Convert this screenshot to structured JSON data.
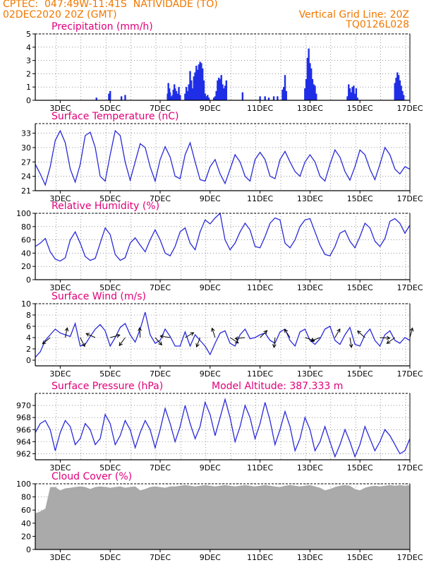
{
  "header": {
    "line1": "CPTEC:  047:49W-11:41S  NATIVIDADE (TO)",
    "line2": "02DEC2020 20Z (GMT)",
    "right1": "Vertical Grid Line: 20Z",
    "right2": "TQ0126L028"
  },
  "model_altitude": "Model Altitude: 387.333 m",
  "x_axis": {
    "labels": [
      "3DEC",
      "5DEC",
      "7DEC",
      "9DEC",
      "11DEC",
      "13DEC",
      "15DEC",
      "17DEC"
    ],
    "range": [
      2.0,
      17.0
    ],
    "label_days": [
      3,
      5,
      7,
      9,
      11,
      13,
      15,
      17
    ]
  },
  "colors": {
    "line": "#2a2ad8",
    "bar": "#1f2ee6",
    "cloud": "#aaaaaa",
    "title": "#e0007a",
    "header": "#f07800"
  },
  "chart_data": [
    {
      "type": "bar",
      "title": "Precipitation (mm/h)",
      "ylim": [
        0,
        5
      ],
      "yticks": [
        "0",
        "1",
        "2",
        "3",
        "4",
        "5"
      ],
      "x": [
        4.45,
        4.95,
        5.0,
        5.45,
        5.6,
        7.3,
        7.33,
        7.37,
        7.4,
        7.45,
        7.5,
        7.53,
        7.57,
        7.6,
        7.65,
        7.7,
        7.75,
        7.8,
        8.0,
        8.05,
        8.1,
        8.15,
        8.2,
        8.25,
        8.3,
        8.35,
        8.4,
        8.45,
        8.5,
        8.55,
        8.6,
        8.65,
        8.7,
        8.75,
        8.8,
        8.85,
        8.9,
        8.95,
        9.15,
        9.2,
        9.25,
        9.3,
        9.35,
        9.4,
        9.45,
        9.5,
        9.55,
        9.6,
        9.65,
        10.3,
        11.0,
        11.2,
        11.35,
        11.55,
        11.7,
        11.9,
        11.95,
        12.0,
        12.05,
        12.8,
        12.85,
        12.9,
        12.95,
        13.0,
        13.05,
        13.1,
        13.15,
        13.2,
        13.25,
        14.5,
        14.55,
        14.6,
        14.65,
        14.7,
        14.75,
        14.8,
        14.85,
        14.9,
        16.4,
        16.45,
        16.5,
        16.55,
        16.6,
        16.65,
        16.7,
        16.75
      ],
      "values": [
        0.2,
        0.5,
        0.7,
        0.3,
        0.4,
        0.5,
        1.3,
        0.9,
        0.6,
        0.3,
        0.4,
        0.8,
        1.2,
        0.9,
        0.7,
        0.5,
        1.0,
        0.4,
        0.5,
        1.0,
        0.7,
        1.2,
        2.2,
        1.5,
        0.9,
        1.8,
        2.1,
        2.6,
        2.3,
        2.7,
        2.9,
        2.8,
        2.4,
        1.5,
        0.5,
        0.3,
        0.4,
        0.2,
        0.2,
        0.3,
        0.7,
        1.5,
        1.7,
        1.6,
        1.9,
        1.2,
        0.9,
        1.1,
        1.5,
        0.6,
        0.3,
        0.3,
        0.2,
        0.3,
        0.3,
        0.8,
        1.0,
        1.9,
        0.7,
        0.9,
        1.6,
        3.2,
        3.9,
        2.8,
        2.4,
        1.6,
        1.2,
        1.1,
        0.5,
        0.3,
        1.2,
        0.9,
        0.6,
        1.0,
        1.1,
        0.5,
        0.9,
        0.2,
        1.3,
        1.7,
        2.1,
        1.9,
        1.5,
        1.1,
        0.7,
        0.4
      ]
    },
    {
      "type": "line",
      "title": "Surface Temperature (nC)",
      "ylim": [
        21,
        35
      ],
      "yticks": [
        "21",
        "24",
        "27",
        "30",
        "33"
      ],
      "x": [
        2.0,
        2.2,
        2.4,
        2.6,
        2.8,
        3.0,
        3.2,
        3.4,
        3.6,
        3.8,
        4.0,
        4.2,
        4.4,
        4.6,
        4.8,
        5.0,
        5.2,
        5.4,
        5.6,
        5.8,
        6.0,
        6.2,
        6.4,
        6.6,
        6.8,
        7.0,
        7.2,
        7.4,
        7.6,
        7.8,
        8.0,
        8.2,
        8.4,
        8.6,
        8.8,
        9.0,
        9.2,
        9.4,
        9.6,
        9.8,
        10.0,
        10.2,
        10.4,
        10.6,
        10.8,
        11.0,
        11.2,
        11.4,
        11.6,
        11.8,
        12.0,
        12.2,
        12.4,
        12.6,
        12.8,
        13.0,
        13.2,
        13.4,
        13.6,
        13.8,
        14.0,
        14.2,
        14.4,
        14.6,
        14.8,
        15.0,
        15.2,
        15.4,
        15.6,
        15.8,
        16.0,
        16.2,
        16.4,
        16.6,
        16.8,
        17.0
      ],
      "values": [
        26.5,
        24.5,
        22.2,
        26.0,
        31.5,
        33.5,
        31.0,
        25.5,
        22.8,
        26.5,
        32.5,
        33.2,
        30.0,
        24.0,
        23.0,
        28.5,
        33.5,
        32.5,
        27.0,
        23.2,
        27.0,
        30.8,
        30.0,
        26.0,
        23.0,
        27.5,
        30.2,
        28.0,
        24.0,
        23.5,
        28.5,
        31.0,
        27.0,
        23.3,
        23.0,
        26.0,
        27.5,
        24.5,
        22.5,
        25.5,
        28.5,
        27.0,
        24.0,
        23.0,
        27.5,
        29.0,
        27.5,
        24.0,
        23.5,
        27.5,
        29.2,
        27.0,
        25.0,
        24.0,
        27.0,
        28.5,
        27.0,
        24.0,
        23.0,
        26.5,
        29.5,
        28.0,
        25.0,
        23.2,
        26.0,
        29.5,
        28.5,
        25.5,
        23.3,
        26.5,
        30.0,
        28.5,
        25.5,
        24.5,
        26.0,
        25.5
      ]
    },
    {
      "type": "line",
      "title": "Relative Humidity (%)",
      "ylim": [
        0,
        100
      ],
      "yticks": [
        "0",
        "20",
        "40",
        "60",
        "80",
        "100"
      ],
      "x": [
        2.0,
        2.2,
        2.4,
        2.6,
        2.8,
        3.0,
        3.2,
        3.4,
        3.6,
        3.8,
        4.0,
        4.2,
        4.4,
        4.6,
        4.8,
        5.0,
        5.2,
        5.4,
        5.6,
        5.8,
        6.0,
        6.2,
        6.4,
        6.6,
        6.8,
        7.0,
        7.2,
        7.4,
        7.6,
        7.8,
        8.0,
        8.2,
        8.4,
        8.6,
        8.8,
        9.0,
        9.2,
        9.4,
        9.6,
        9.8,
        10.0,
        10.2,
        10.4,
        10.6,
        10.8,
        11.0,
        11.2,
        11.4,
        11.6,
        11.8,
        12.0,
        12.2,
        12.4,
        12.6,
        12.8,
        13.0,
        13.2,
        13.4,
        13.6,
        13.8,
        14.0,
        14.2,
        14.4,
        14.6,
        14.8,
        15.0,
        15.2,
        15.4,
        15.6,
        15.8,
        16.0,
        16.2,
        16.4,
        16.6,
        16.8,
        17.0
      ],
      "values": [
        50,
        55,
        62,
        42,
        31,
        28,
        33,
        60,
        72,
        55,
        35,
        29,
        32,
        55,
        78,
        68,
        38,
        29,
        33,
        55,
        63,
        52,
        42,
        60,
        75,
        60,
        40,
        36,
        50,
        72,
        78,
        55,
        45,
        72,
        90,
        84,
        93,
        100,
        60,
        45,
        55,
        72,
        85,
        75,
        50,
        48,
        65,
        85,
        93,
        90,
        55,
        48,
        60,
        80,
        90,
        92,
        72,
        52,
        38,
        36,
        50,
        70,
        74,
        58,
        48,
        65,
        85,
        78,
        58,
        50,
        62,
        88,
        92,
        85,
        70,
        82
      ]
    },
    {
      "type": "line",
      "title": "Surface Wind (m/s)",
      "ylim": [
        -1,
        10
      ],
      "yticks": [
        "0",
        "2",
        "4",
        "6",
        "8",
        "10"
      ],
      "x": [
        2.0,
        2.2,
        2.4,
        2.6,
        2.8,
        3.0,
        3.2,
        3.4,
        3.6,
        3.8,
        4.0,
        4.2,
        4.4,
        4.6,
        4.8,
        5.0,
        5.2,
        5.4,
        5.6,
        5.8,
        6.0,
        6.2,
        6.4,
        6.6,
        6.8,
        7.0,
        7.2,
        7.4,
        7.6,
        7.8,
        8.0,
        8.2,
        8.4,
        8.6,
        8.8,
        9.0,
        9.2,
        9.4,
        9.6,
        9.8,
        10.0,
        10.2,
        10.4,
        10.6,
        10.8,
        11.0,
        11.2,
        11.4,
        11.6,
        11.8,
        12.0,
        12.2,
        12.4,
        12.6,
        12.8,
        13.0,
        13.2,
        13.4,
        13.6,
        13.8,
        14.0,
        14.2,
        14.4,
        14.6,
        14.8,
        15.0,
        15.2,
        15.4,
        15.6,
        15.8,
        16.0,
        16.2,
        16.4,
        16.6,
        16.8,
        17.0
      ],
      "values": [
        0.5,
        1.5,
        3.5,
        4.5,
        5.5,
        4.8,
        4.5,
        4.2,
        6.5,
        2.5,
        2.8,
        4.2,
        5.5,
        6.3,
        5.2,
        2.5,
        4.0,
        5.8,
        6.5,
        4.5,
        3.2,
        5.5,
        8.5,
        4.5,
        3.0,
        3.5,
        5.5,
        4.2,
        2.5,
        2.5,
        5.0,
        2.5,
        4.5,
        3.5,
        2.5,
        1.0,
        3.0,
        4.8,
        5.2,
        3.0,
        2.5,
        4.5,
        5.5,
        3.8,
        4.0,
        4.5,
        4.8,
        3.5,
        3.0,
        5.0,
        5.5,
        3.5,
        2.5,
        5.0,
        5.5,
        3.5,
        2.8,
        3.8,
        5.5,
        6.0,
        3.5,
        2.8,
        4.5,
        5.8,
        2.8,
        2.5,
        4.5,
        5.5,
        3.5,
        2.5,
        4.5,
        5.2,
        3.5,
        3.0,
        4.0,
        3.5
      ]
    },
    {
      "type": "line",
      "title": "Surface Pressure (hPa)",
      "ylim": [
        961,
        972
      ],
      "yticks": [
        "962",
        "964",
        "966",
        "968",
        "970"
      ],
      "x": [
        2.0,
        2.2,
        2.4,
        2.6,
        2.8,
        3.0,
        3.2,
        3.4,
        3.6,
        3.8,
        4.0,
        4.2,
        4.4,
        4.6,
        4.8,
        5.0,
        5.2,
        5.4,
        5.6,
        5.8,
        6.0,
        6.2,
        6.4,
        6.6,
        6.8,
        7.0,
        7.2,
        7.4,
        7.6,
        7.8,
        8.0,
        8.2,
        8.4,
        8.6,
        8.8,
        9.0,
        9.2,
        9.4,
        9.6,
        9.8,
        10.0,
        10.2,
        10.4,
        10.6,
        10.8,
        11.0,
        11.2,
        11.4,
        11.6,
        11.8,
        12.0,
        12.2,
        12.4,
        12.6,
        12.8,
        13.0,
        13.2,
        13.4,
        13.6,
        13.8,
        14.0,
        14.2,
        14.4,
        14.6,
        14.8,
        15.0,
        15.2,
        15.4,
        15.6,
        15.8,
        16.0,
        16.2,
        16.4,
        16.6,
        16.8,
        17.0
      ],
      "values": [
        965.5,
        967.0,
        967.5,
        966.0,
        962.5,
        965.5,
        967.5,
        966.5,
        963.5,
        964.5,
        967.0,
        966.0,
        963.5,
        964.5,
        968.5,
        967.0,
        963.5,
        965.0,
        967.5,
        966.0,
        963.0,
        965.5,
        967.5,
        966.0,
        963.0,
        966.0,
        969.5,
        967.0,
        964.0,
        966.5,
        970.0,
        967.0,
        964.5,
        966.5,
        970.5,
        968.5,
        965.0,
        968.0,
        971.0,
        968.0,
        964.0,
        966.5,
        970.0,
        968.0,
        964.5,
        967.0,
        970.5,
        967.5,
        963.5,
        966.0,
        969.0,
        966.5,
        962.5,
        964.5,
        968.0,
        966.0,
        962.5,
        964.0,
        966.5,
        964.0,
        961.5,
        963.5,
        966.0,
        964.0,
        961.5,
        963.5,
        966.5,
        964.5,
        962.5,
        964.0,
        966.0,
        965.0,
        963.5,
        962.0,
        962.5,
        964.5
      ]
    },
    {
      "type": "area",
      "title": "Cloud Cover (%)",
      "ylim": [
        0,
        100
      ],
      "yticks": [
        "0",
        "20",
        "40",
        "60",
        "80",
        "100"
      ],
      "x": [
        2.0,
        2.2,
        2.4,
        2.6,
        2.8,
        3.0,
        3.2,
        3.4,
        3.6,
        3.8,
        4.0,
        4.2,
        4.4,
        4.6,
        4.8,
        5.0,
        5.2,
        5.4,
        5.6,
        5.8,
        6.0,
        6.2,
        6.4,
        6.6,
        6.8,
        7.0,
        7.2,
        7.4,
        7.6,
        7.8,
        8.0,
        8.2,
        8.4,
        8.6,
        8.8,
        9.0,
        9.2,
        9.4,
        9.6,
        9.8,
        10.0,
        10.2,
        10.4,
        10.6,
        10.8,
        11.0,
        11.2,
        11.4,
        11.6,
        11.8,
        12.0,
        12.2,
        12.4,
        12.6,
        12.8,
        13.0,
        13.2,
        13.4,
        13.6,
        13.8,
        14.0,
        14.2,
        14.4,
        14.6,
        14.8,
        15.0,
        15.2,
        15.4,
        15.6,
        15.8,
        16.0,
        16.2,
        16.4,
        16.6,
        16.8,
        17.0
      ],
      "values": [
        55,
        58,
        62,
        95,
        95,
        90,
        93,
        94,
        95,
        96,
        95,
        92,
        95,
        96,
        95,
        94,
        95,
        96,
        94,
        95,
        96,
        90,
        92,
        95,
        96,
        95,
        94,
        96,
        96,
        97,
        98,
        97,
        96,
        97,
        98,
        97,
        96,
        97,
        98,
        97,
        96,
        97,
        98,
        97,
        96,
        97,
        98,
        97,
        96,
        95,
        97,
        98,
        97,
        96,
        97,
        98,
        96,
        94,
        90,
        92,
        95,
        97,
        98,
        97,
        92,
        90,
        94,
        96,
        97,
        96,
        97,
        98,
        97,
        98,
        97,
        98
      ]
    }
  ],
  "titles_extra": {
    "cloud_title": "Cloud Cover (%)"
  }
}
